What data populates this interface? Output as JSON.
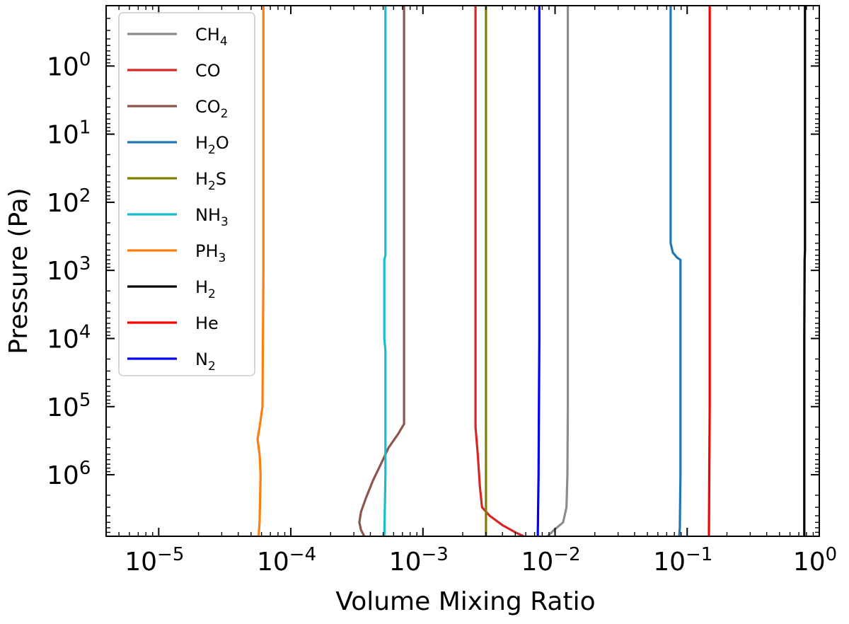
{
  "chart_data": {
    "type": "line",
    "title": "",
    "xlabel": "Volume Mixing Ratio",
    "ylabel": "Pressure (Pa)",
    "xscale": "log",
    "yscale": "log",
    "yaxis_inverted": true,
    "xlim": [
      4e-06,
      1.0
    ],
    "ylim": [
      0.13,
      8000000.0
    ],
    "grid": false,
    "legend_placement": "top-left",
    "x_ticks": [
      {
        "value": 1e-05,
        "base": "10",
        "exp": "−5"
      },
      {
        "value": 0.0001,
        "base": "10",
        "exp": "−4"
      },
      {
        "value": 0.001,
        "base": "10",
        "exp": "−3"
      },
      {
        "value": 0.01,
        "base": "10",
        "exp": "−2"
      },
      {
        "value": 0.1,
        "base": "10",
        "exp": "−1"
      },
      {
        "value": 1.0,
        "base": "10",
        "exp": "0"
      }
    ],
    "y_ticks": [
      {
        "value": 1,
        "base": "10",
        "exp": "0"
      },
      {
        "value": 10,
        "base": "10",
        "exp": "1"
      },
      {
        "value": 100,
        "base": "10",
        "exp": "2"
      },
      {
        "value": 1000,
        "base": "10",
        "exp": "3"
      },
      {
        "value": 10000,
        "base": "10",
        "exp": "4"
      },
      {
        "value": 100000,
        "base": "10",
        "exp": "5"
      },
      {
        "value": 1000000,
        "base": "10",
        "exp": "6"
      }
    ],
    "series": [
      {
        "name": "CH4",
        "label_base": "CH",
        "label_sub": "4",
        "color": "#8c8c8c",
        "points": [
          [
            0.0125,
            0.13
          ],
          [
            0.0125,
            10000.0
          ],
          [
            0.0125,
            100000.0
          ],
          [
            0.0124,
            1000000.0
          ],
          [
            0.0122,
            3000000.0
          ],
          [
            0.0115,
            5000000.0
          ],
          [
            0.0098,
            6500000.0
          ],
          [
            0.0088,
            8000000.0
          ]
        ]
      },
      {
        "name": "CO",
        "label_base": "CO",
        "label_sub": "",
        "color": "#d62728",
        "points": [
          [
            0.0025,
            0.13
          ],
          [
            0.0025,
            1000.0
          ],
          [
            0.0025,
            100000.0
          ],
          [
            0.0025,
            200000.0
          ],
          [
            0.0026,
            500000.0
          ],
          [
            0.0027,
            1500000.0
          ],
          [
            0.0028,
            3000000.0
          ],
          [
            0.0032,
            4000000.0
          ],
          [
            0.004,
            5500000.0
          ],
          [
            0.005,
            7000000.0
          ],
          [
            0.0058,
            8000000.0
          ]
        ]
      },
      {
        "name": "CO2",
        "label_base": "CO",
        "label_sub": "2",
        "color": "#8c564b",
        "points": [
          [
            0.00072,
            0.13
          ],
          [
            0.00072,
            1000.0
          ],
          [
            0.00072,
            180000.0
          ],
          [
            0.00065,
            250000.0
          ],
          [
            0.00055,
            400000.0
          ],
          [
            0.00048,
            700000.0
          ],
          [
            0.00042,
            1200000.0
          ],
          [
            0.00037,
            2200000.0
          ],
          [
            0.00034,
            3500000.0
          ],
          [
            0.00033,
            5000000.0
          ],
          [
            0.00034,
            6500000.0
          ],
          [
            0.00036,
            8000000.0
          ]
        ]
      },
      {
        "name": "H2O",
        "label_base": "H",
        "label_sub": "2",
        "label_tail": "O",
        "color": "#1f77b4",
        "points": [
          [
            0.075,
            0.13
          ],
          [
            0.075,
            400
          ],
          [
            0.078,
            550
          ],
          [
            0.084,
            650
          ],
          [
            0.089,
            700
          ],
          [
            0.089,
            10000.0
          ],
          [
            0.089,
            1000000.0
          ],
          [
            0.088,
            6000000.0
          ],
          [
            0.087,
            8000000.0
          ]
        ]
      },
      {
        "name": "H2S",
        "label_base": "H",
        "label_sub": "2",
        "label_tail": "S",
        "color": "#808000",
        "points": [
          [
            0.003,
            0.13
          ],
          [
            0.003,
            8000000.0
          ]
        ]
      },
      {
        "name": "NH3",
        "label_base": "NH",
        "label_sub": "3",
        "color": "#17becf",
        "points": [
          [
            0.00052,
            0.13
          ],
          [
            0.00052,
            600
          ],
          [
            0.00051,
            700
          ],
          [
            0.00051,
            10000.0
          ],
          [
            0.00052,
            15000.0
          ],
          [
            0.00052,
            1000000.0
          ],
          [
            0.00051,
            8000000.0
          ]
        ]
      },
      {
        "name": "PH3",
        "label_base": "PH",
        "label_sub": "3",
        "color": "#ff7f0e",
        "points": [
          [
            6.2e-05,
            0.13
          ],
          [
            6.2e-05,
            1000.0
          ],
          [
            6.1e-05,
            100000.0
          ],
          [
            5.8e-05,
            200000.0
          ],
          [
            5.6e-05,
            300000.0
          ],
          [
            5.8e-05,
            500000.0
          ],
          [
            5.9e-05,
            1000000.0
          ],
          [
            5.8e-05,
            5000000.0
          ],
          [
            5.7e-05,
            8000000.0
          ]
        ]
      },
      {
        "name": "H2",
        "label_base": "H",
        "label_sub": "2",
        "color": "#000000",
        "points": [
          [
            0.78,
            0.13
          ],
          [
            0.78,
            500
          ],
          [
            0.775,
            700
          ],
          [
            0.77,
            10000.0
          ],
          [
            0.77,
            8000000.0
          ]
        ]
      },
      {
        "name": "He",
        "label_base": "He",
        "label_sub": "",
        "color": "#ff0000",
        "points": [
          [
            0.148,
            0.13
          ],
          [
            0.148,
            100000.0
          ],
          [
            0.147,
            1000000.0
          ],
          [
            0.146,
            8000000.0
          ]
        ]
      },
      {
        "name": "N2",
        "label_base": "N",
        "label_sub": "2",
        "color": "#0000ff",
        "points": [
          [
            0.0076,
            0.13
          ],
          [
            0.0076,
            10000.0
          ],
          [
            0.0075,
            1000000.0
          ],
          [
            0.0074,
            8000000.0
          ]
        ]
      }
    ]
  }
}
